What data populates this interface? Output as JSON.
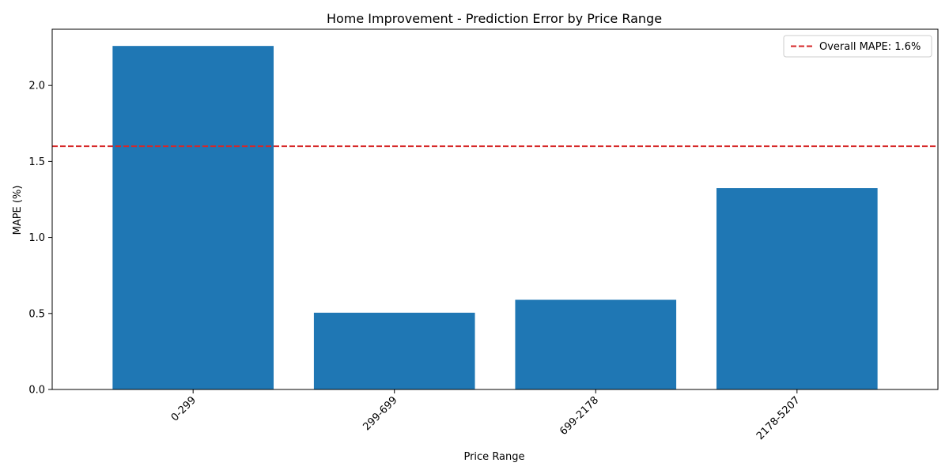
{
  "chart_data": {
    "type": "bar",
    "title": "Home Improvement - Prediction Error by Price Range",
    "xlabel": "Price Range",
    "ylabel": "MAPE (%)",
    "categories": [
      "0-299",
      "299-699",
      "699-2178",
      "2178-5207"
    ],
    "values": [
      2.26,
      0.505,
      0.59,
      1.325
    ],
    "ylim": [
      0,
      2.37
    ],
    "yticks": [
      0.0,
      0.5,
      1.0,
      1.5,
      2.0
    ],
    "ytick_labels": [
      "0.0",
      "0.5",
      "1.0",
      "1.5",
      "2.0"
    ],
    "xtick_rotation": 45,
    "grid": false,
    "bar_color": "#1f77b4",
    "reference_line": {
      "value": 1.6,
      "label": "Overall MAPE: 1.6%",
      "color": "#d62728",
      "style": "dashed"
    },
    "legend": {
      "position": "top-right"
    }
  }
}
